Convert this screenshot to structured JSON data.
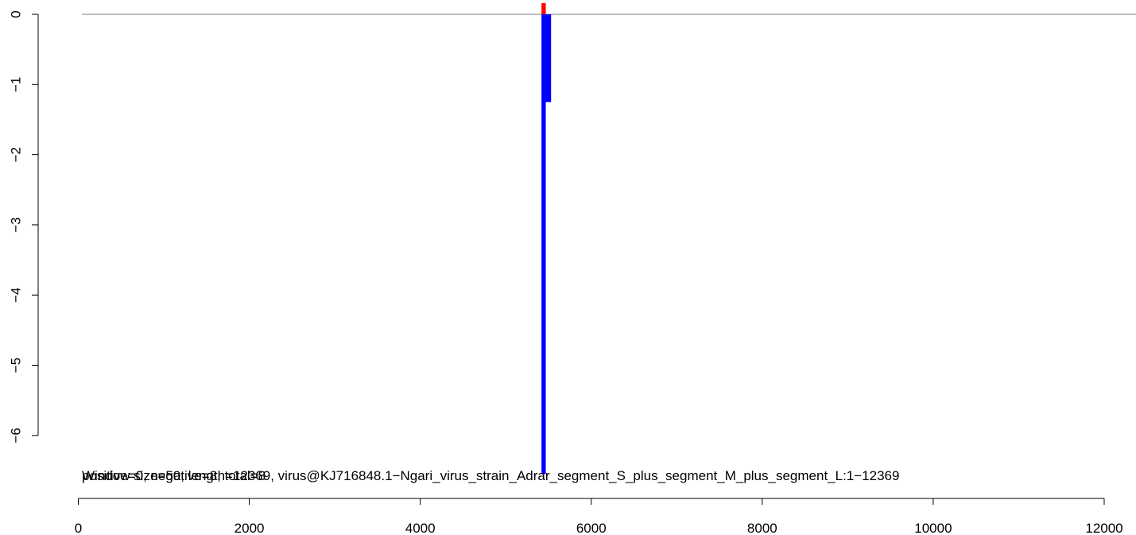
{
  "chart_data": {
    "type": "bar",
    "title": "",
    "xlabel": "",
    "ylabel": "",
    "xlim": [
      0,
      12369
    ],
    "ylim": [
      -6.55,
      0.16
    ],
    "x_ticks": [
      0,
      2000,
      4000,
      6000,
      8000,
      10000,
      12000
    ],
    "y_ticks": [
      0,
      -1,
      -2,
      -3,
      -4,
      -5,
      -6
    ],
    "x_tick_labels": [
      "0",
      "2000",
      "4000",
      "6000",
      "8000",
      "10000",
      "12000"
    ],
    "y_tick_labels": [
      "0",
      "−1",
      "−2",
      "−3",
      "−4",
      "−5",
      "−6"
    ],
    "grid": false,
    "series": [
      {
        "color": "#ff0000",
        "bars": [
          {
            "x_start": 5418,
            "x_end": 5468,
            "value": 0.16
          }
        ]
      },
      {
        "color": "#0000ff",
        "bars": [
          {
            "x_start": 5418,
            "x_end": 5468,
            "value": -6.55
          },
          {
            "x_start": 5468,
            "x_end": 5530,
            "value": -1.25
          }
        ]
      }
    ],
    "baseline": {
      "y": 0,
      "color": "#808080"
    },
    "annotations": [
      "positive=0, negative=8, total=8",
      "Window size=50, length=12369, virus@KJ716848.1−Ngari_virus_strain_Adrar_segment_S_plus_segment_M_plus_segment_L:1−12369"
    ]
  }
}
